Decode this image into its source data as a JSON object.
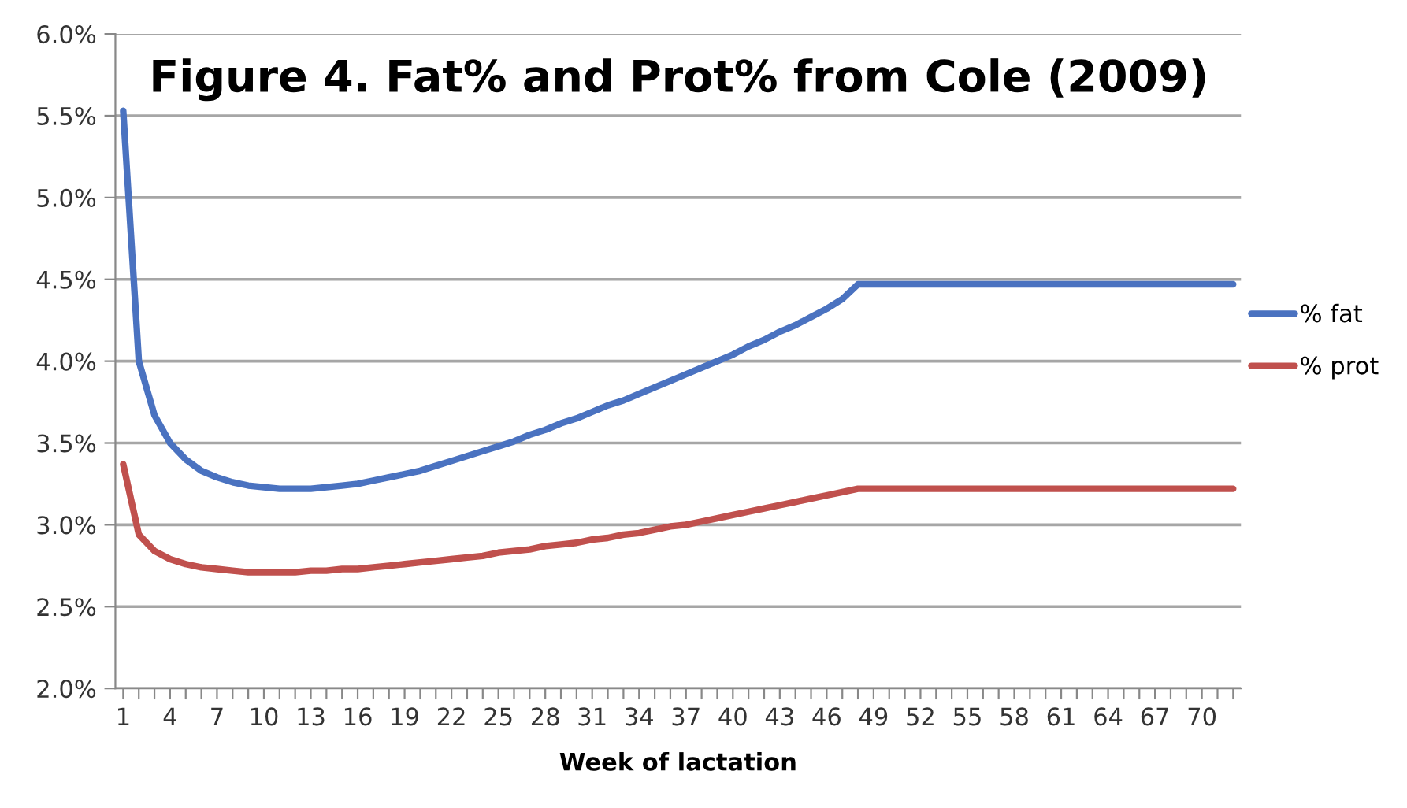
{
  "chart_data": {
    "type": "line",
    "title": "Figure 4. Fat% and Prot% from Cole (2009)",
    "xlabel": "Week of lactation",
    "categories": [
      "1",
      null,
      null,
      "4",
      null,
      null,
      "7",
      null,
      null,
      "10",
      null,
      null,
      "13",
      null,
      null,
      "16",
      null,
      null,
      "19",
      null,
      null,
      "22",
      null,
      null,
      "25",
      null,
      null,
      "28",
      null,
      null,
      "31",
      null,
      null,
      "34",
      null,
      null,
      "37",
      null,
      null,
      "40",
      null,
      null,
      "43",
      null,
      null,
      "46",
      null,
      null,
      "49",
      null,
      null,
      "52",
      null,
      null,
      "55",
      null,
      null,
      "58",
      null,
      null,
      "61",
      null,
      null,
      "64",
      null,
      null,
      "67",
      null,
      null,
      "70",
      null,
      null
    ],
    "series": [
      {
        "name": "% fat",
        "color": "#4a72c0",
        "values": [
          5.53,
          4.0,
          3.67,
          3.5,
          3.4,
          3.33,
          3.29,
          3.26,
          3.24,
          3.23,
          3.22,
          3.22,
          3.22,
          3.23,
          3.24,
          3.25,
          3.27,
          3.29,
          3.31,
          3.33,
          3.36,
          3.39,
          3.42,
          3.45,
          3.48,
          3.51,
          3.55,
          3.58,
          3.62,
          3.65,
          3.69,
          3.73,
          3.76,
          3.8,
          3.84,
          3.88,
          3.92,
          3.96,
          4.0,
          4.04,
          4.09,
          4.13,
          4.18,
          4.22,
          4.27,
          4.32,
          4.38,
          4.47,
          4.47,
          4.47,
          4.47,
          4.47,
          4.47,
          4.47,
          4.47,
          4.47,
          4.47,
          4.47,
          4.47,
          4.47,
          4.47,
          4.47,
          4.47,
          4.47,
          4.47,
          4.47,
          4.47,
          4.47,
          4.47,
          4.47,
          4.47,
          4.47
        ]
      },
      {
        "name": "% prot",
        "color": "#c0504d",
        "values": [
          3.37,
          2.94,
          2.84,
          2.79,
          2.76,
          2.74,
          2.73,
          2.72,
          2.71,
          2.71,
          2.71,
          2.71,
          2.72,
          2.72,
          2.73,
          2.73,
          2.74,
          2.75,
          2.76,
          2.77,
          2.78,
          2.79,
          2.8,
          2.81,
          2.83,
          2.84,
          2.85,
          2.87,
          2.88,
          2.89,
          2.91,
          2.92,
          2.94,
          2.95,
          2.97,
          2.99,
          3.0,
          3.02,
          3.04,
          3.06,
          3.08,
          3.1,
          3.12,
          3.14,
          3.16,
          3.18,
          3.2,
          3.22,
          3.22,
          3.22,
          3.22,
          3.22,
          3.22,
          3.22,
          3.22,
          3.22,
          3.22,
          3.22,
          3.22,
          3.22,
          3.22,
          3.22,
          3.22,
          3.22,
          3.22,
          3.22,
          3.22,
          3.22,
          3.22,
          3.22,
          3.22,
          3.22
        ]
      }
    ],
    "ylim": [
      2.0,
      6.0
    ],
    "yticks": [
      {
        "value": 2.0,
        "label": "2.0%"
      },
      {
        "value": 2.5,
        "label": "2.5%"
      },
      {
        "value": 3.0,
        "label": "3.0%"
      },
      {
        "value": 3.5,
        "label": "3.5%"
      },
      {
        "value": 4.0,
        "label": "4.0%"
      },
      {
        "value": 4.5,
        "label": "4.5%"
      },
      {
        "value": 5.0,
        "label": "5.0%"
      },
      {
        "value": 5.5,
        "label": "5.5%"
      },
      {
        "value": 6.0,
        "label": "6.0%"
      }
    ],
    "grid": "y",
    "legend": "right",
    "marker": "none",
    "line_style": "solid"
  }
}
